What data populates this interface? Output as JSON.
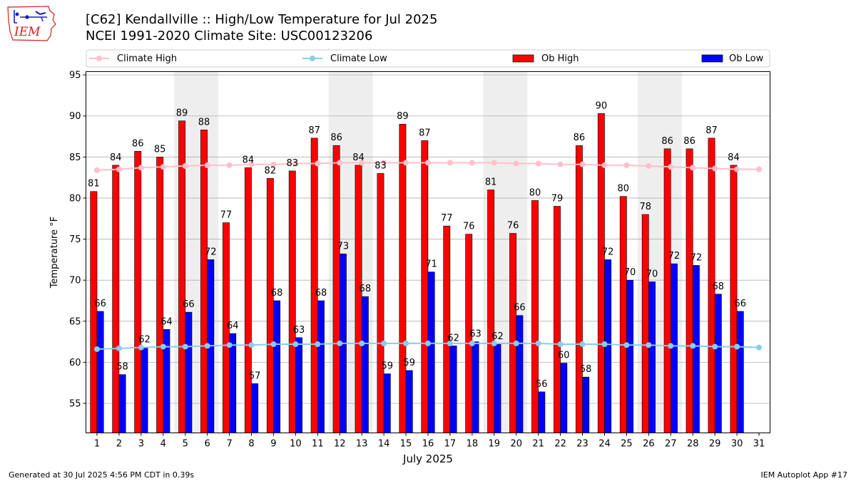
{
  "header": {
    "title": "[C62] Kendallville :: High/Low Temperature for Jul 2025",
    "subtitle": "NCEI 1991-2020 Climate Site: USC00123206",
    "logo_text": "IEM"
  },
  "footer": {
    "generated": "Generated at 30 Jul 2025 4:56 PM CDT in 0.39s",
    "app": "IEM Autoplot App #17"
  },
  "colors": {
    "ob_high": "#ff0000",
    "ob_low": "#0000ff",
    "climate_high": "#ffc0cb",
    "climate_low": "#87ceeb",
    "weekend_band": "#eeeeee",
    "grid": "#b0b0b0",
    "logo": "#cc2222",
    "logo_marks": "#1a1acc"
  },
  "chart_data": {
    "type": "bar",
    "title": "[C62] Kendallville :: High/Low Temperature for Jul 2025",
    "xlabel": "July 2025",
    "ylabel": "Temperature °F",
    "ylim": [
      51.4,
      95.4
    ],
    "yticks": [
      55,
      60,
      65,
      70,
      75,
      80,
      85,
      90,
      95
    ],
    "grid": true,
    "legend": {
      "placement": "top",
      "entries": [
        "Climate High",
        "Climate Low",
        "Ob High",
        "Ob Low"
      ]
    },
    "categories": [
      1,
      2,
      3,
      4,
      5,
      6,
      7,
      8,
      9,
      10,
      11,
      12,
      13,
      14,
      15,
      16,
      17,
      18,
      19,
      20,
      21,
      22,
      23,
      24,
      25,
      26,
      27,
      28,
      29,
      30,
      31
    ],
    "weekend_spans": [
      [
        5,
        6
      ],
      [
        12,
        13
      ],
      [
        19,
        20
      ],
      [
        26,
        27
      ]
    ],
    "series": [
      {
        "name": "Ob High",
        "kind": "bar",
        "values": [
          80.8,
          84.0,
          85.7,
          85.0,
          89.4,
          88.3,
          77.0,
          83.7,
          82.4,
          83.3,
          87.3,
          86.4,
          84.0,
          83.0,
          89.0,
          87.0,
          76.6,
          75.6,
          81.0,
          75.7,
          79.7,
          79.0,
          86.4,
          90.3,
          80.2,
          78.0,
          86.0,
          86.0,
          87.3,
          84.0,
          null
        ],
        "labels": [
          81,
          84,
          86,
          85,
          89,
          88,
          77,
          84,
          82,
          83,
          87,
          86,
          84,
          83,
          89,
          87,
          77,
          76,
          81,
          76,
          80,
          79,
          86,
          90,
          80,
          78,
          86,
          86,
          87,
          84,
          null
        ]
      },
      {
        "name": "Ob Low",
        "kind": "bar",
        "values": [
          66.2,
          58.5,
          61.8,
          64.0,
          66.1,
          72.5,
          63.5,
          57.4,
          67.5,
          63.0,
          67.5,
          73.2,
          68.0,
          58.6,
          59.0,
          71.0,
          62.0,
          62.5,
          62.2,
          65.7,
          56.4,
          59.9,
          58.2,
          72.5,
          70.0,
          69.8,
          72.0,
          71.8,
          68.3,
          66.2,
          null
        ],
        "labels": [
          66,
          58,
          62,
          64,
          66,
          72,
          64,
          57,
          68,
          63,
          68,
          73,
          68,
          59,
          59,
          71,
          62,
          63,
          62,
          66,
          56,
          60,
          58,
          72,
          70,
          70,
          72,
          72,
          68,
          66,
          null
        ]
      },
      {
        "name": "Climate High",
        "kind": "line",
        "values": [
          83.4,
          83.5,
          83.7,
          83.8,
          83.9,
          84.0,
          84.0,
          84.1,
          84.1,
          84.2,
          84.2,
          84.3,
          84.3,
          84.3,
          84.3,
          84.3,
          84.3,
          84.3,
          84.3,
          84.2,
          84.2,
          84.1,
          84.1,
          84.0,
          84.0,
          83.9,
          83.8,
          83.7,
          83.6,
          83.5,
          83.5
        ]
      },
      {
        "name": "Climate Low",
        "kind": "line",
        "values": [
          61.6,
          61.7,
          61.8,
          61.9,
          61.9,
          62.0,
          62.1,
          62.1,
          62.2,
          62.2,
          62.2,
          62.3,
          62.3,
          62.3,
          62.3,
          62.3,
          62.3,
          62.3,
          62.3,
          62.3,
          62.3,
          62.2,
          62.2,
          62.2,
          62.1,
          62.1,
          62.0,
          62.0,
          61.9,
          61.9,
          61.8
        ]
      }
    ]
  }
}
